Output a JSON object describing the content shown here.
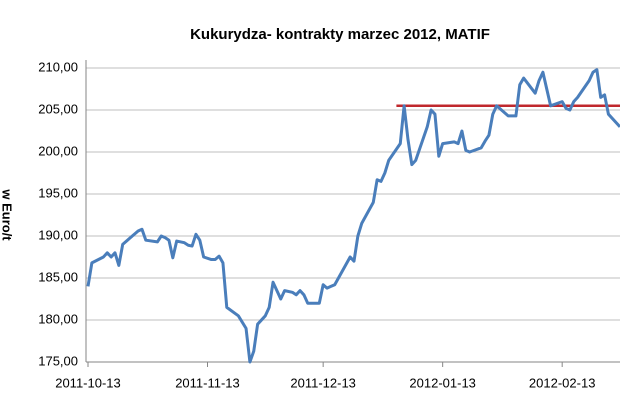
{
  "chart_data": {
    "type": "line",
    "title": "Kukurydza- kontrakty marzec 2012, MATIF",
    "y_label": "w Euro/t",
    "xlim": [
      "2011-10-13",
      "2012-02-28"
    ],
    "xticks": [
      "2011-10-13",
      "2011-11-13",
      "2011-12-13",
      "2012-01-13",
      "2012-02-13"
    ],
    "ylim": [
      175,
      210
    ],
    "yticks": [
      {
        "value": 175,
        "label": "175,00"
      },
      {
        "value": 180,
        "label": "180,00"
      },
      {
        "value": 185,
        "label": "185,00"
      },
      {
        "value": 190,
        "label": "190,00"
      },
      {
        "value": 195,
        "label": "195,00"
      },
      {
        "value": 200,
        "label": "200,00"
      },
      {
        "value": 205,
        "label": "205,00"
      },
      {
        "value": 210,
        "label": "210,00"
      }
    ],
    "grid": true,
    "x": [
      "2011-10-13",
      "2011-10-14",
      "2011-10-17",
      "2011-10-18",
      "2011-10-19",
      "2011-10-20",
      "2011-10-21",
      "2011-10-22",
      "2011-10-24",
      "2011-10-26",
      "2011-10-27",
      "2011-10-28",
      "2011-10-31",
      "2011-11-01",
      "2011-11-02",
      "2011-11-03",
      "2011-11-04",
      "2011-11-05",
      "2011-11-07",
      "2011-11-08",
      "2011-11-09",
      "2011-11-10",
      "2011-11-11",
      "2011-11-12",
      "2011-11-14",
      "2011-11-15",
      "2011-11-16",
      "2011-11-17",
      "2011-11-18",
      "2011-11-21",
      "2011-11-23",
      "2011-11-24",
      "2011-11-25",
      "2011-11-26",
      "2011-11-28",
      "2011-11-29",
      "2011-11-30",
      "2011-12-01",
      "2011-12-02",
      "2011-12-03",
      "2011-12-05",
      "2011-12-06",
      "2011-12-07",
      "2011-12-08",
      "2011-12-09",
      "2011-12-10",
      "2011-12-12",
      "2011-12-13",
      "2011-12-14",
      "2011-12-15",
      "2011-12-16",
      "2011-12-20",
      "2011-12-21",
      "2011-12-22",
      "2011-12-23",
      "2011-12-26",
      "2011-12-27",
      "2011-12-28",
      "2011-12-29",
      "2011-12-30",
      "2012-01-02",
      "2012-01-03",
      "2012-01-04",
      "2012-01-05",
      "2012-01-06",
      "2012-01-09",
      "2012-01-10",
      "2012-01-11",
      "2012-01-12",
      "2012-01-13",
      "2012-01-16",
      "2012-01-17",
      "2012-01-18",
      "2012-01-19",
      "2012-01-20",
      "2012-01-23",
      "2012-01-24",
      "2012-01-25",
      "2012-01-26",
      "2012-01-27",
      "2012-01-30",
      "2012-01-31",
      "2012-02-01",
      "2012-02-02",
      "2012-02-03",
      "2012-02-06",
      "2012-02-07",
      "2012-02-08",
      "2012-02-09",
      "2012-02-10",
      "2012-02-13",
      "2012-02-14",
      "2012-02-15",
      "2012-02-16",
      "2012-02-17",
      "2012-02-20",
      "2012-02-21",
      "2012-02-22",
      "2012-02-23",
      "2012-02-24",
      "2012-02-25",
      "2012-02-27",
      "2012-02-28"
    ],
    "series": [
      {
        "color": "#4a7ebb",
        "values": [
          184.0,
          186.8,
          187.5,
          188.0,
          187.5,
          188.0,
          186.5,
          189.0,
          189.8,
          190.6,
          190.8,
          189.5,
          189.3,
          190.0,
          189.8,
          189.5,
          187.4,
          189.4,
          189.2,
          188.9,
          188.8,
          190.2,
          189.5,
          187.5,
          187.2,
          187.2,
          187.6,
          186.8,
          181.5,
          180.5,
          179.0,
          175.0,
          176.3,
          179.5,
          180.5,
          181.5,
          184.5,
          183.5,
          182.5,
          183.5,
          183.3,
          183.0,
          183.5,
          183.0,
          182.0,
          182.0,
          182.0,
          184.2,
          183.8,
          184.0,
          184.2,
          187.5,
          187.0,
          190.0,
          191.5,
          194.0,
          196.7,
          196.5,
          197.5,
          199.0,
          201.0,
          205.5,
          201.5,
          198.5,
          199.0,
          203.0,
          205.0,
          204.5,
          199.5,
          201.0,
          201.2,
          201.0,
          202.5,
          200.2,
          200.0,
          200.5,
          201.3,
          202.0,
          204.5,
          205.5,
          204.3,
          204.3,
          204.3,
          208.0,
          208.8,
          207.0,
          208.5,
          209.5,
          207.5,
          205.5,
          206.0,
          205.2,
          205.0,
          206.0,
          206.5,
          208.5,
          209.5,
          209.8,
          206.5,
          206.8,
          204.5,
          203.5,
          203.0
        ]
      }
    ],
    "reference_line": {
      "x": [
        "2012-01-01",
        "2012-02-28"
      ],
      "value": 205.5,
      "color": "#c0282d"
    }
  }
}
